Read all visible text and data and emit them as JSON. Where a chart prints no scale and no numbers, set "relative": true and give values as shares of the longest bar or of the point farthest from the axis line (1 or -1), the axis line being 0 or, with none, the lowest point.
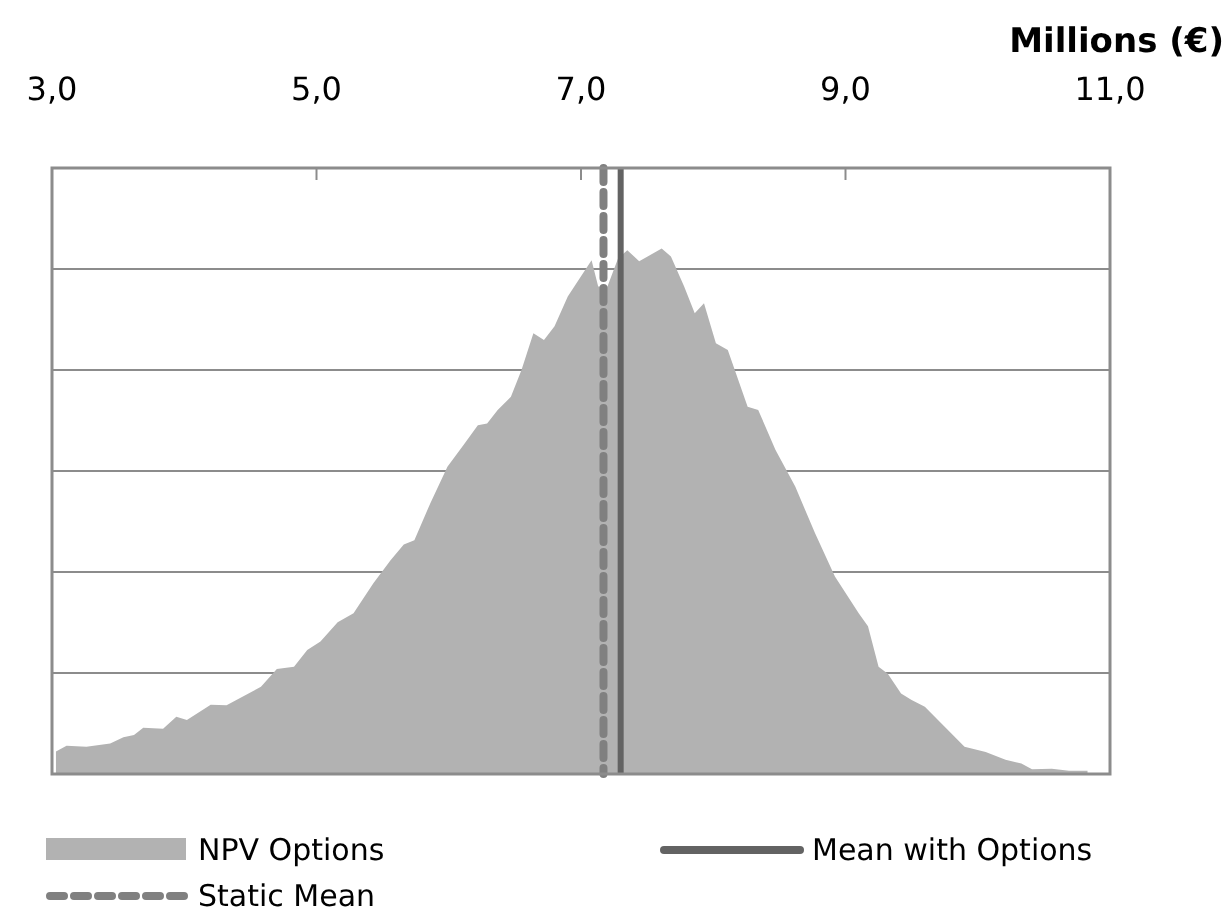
{
  "chart_data": {
    "type": "area",
    "relative": true,
    "xlabel": "Millions (€)",
    "xlim": [
      3,
      11
    ],
    "xticks": [
      {
        "value": 3,
        "label": "3,0"
      },
      {
        "value": 5,
        "label": "5,0"
      },
      {
        "value": 7,
        "label": "7,0"
      },
      {
        "value": 9,
        "label": "9,0"
      },
      {
        "value": 11,
        "label": "11,0"
      }
    ],
    "grid": true,
    "legend": "bottom",
    "series": [
      {
        "name": "NPV Options",
        "color": "#b2b2b2",
        "x": [
          3.03,
          3.11,
          3.26,
          3.44,
          3.54,
          3.62,
          3.69,
          3.84,
          3.94,
          4.02,
          4.2,
          4.32,
          4.58,
          4.7,
          4.83,
          4.93,
          5.03,
          5.16,
          5.28,
          5.43,
          5.56,
          5.66,
          5.74,
          5.86,
          5.99,
          6.12,
          6.22,
          6.29,
          6.37,
          6.47,
          6.55,
          6.64,
          6.72,
          6.8,
          6.9,
          7.03,
          7.08,
          7.13,
          7.2,
          7.28,
          7.35,
          7.44,
          7.61,
          7.68,
          7.78,
          7.86,
          7.93,
          8.02,
          8.11,
          8.26,
          8.34,
          8.47,
          8.62,
          8.77,
          8.92,
          9.1,
          9.17,
          9.25,
          9.32,
          9.42,
          9.5,
          9.6,
          9.75,
          9.9,
          10.06,
          10.21,
          10.33,
          10.41,
          10.56,
          10.69,
          10.83
        ],
        "values": [
          0.043,
          0.054,
          0.052,
          0.058,
          0.07,
          0.074,
          0.088,
          0.086,
          0.109,
          0.103,
          0.132,
          0.131,
          0.166,
          0.2,
          0.204,
          0.236,
          0.252,
          0.289,
          0.306,
          0.363,
          0.407,
          0.437,
          0.445,
          0.515,
          0.585,
          0.629,
          0.664,
          0.667,
          0.693,
          0.718,
          0.769,
          0.839,
          0.826,
          0.852,
          0.909,
          0.959,
          0.978,
          0.928,
          0.928,
          0.981,
          0.997,
          0.976,
          1.0,
          0.985,
          0.928,
          0.877,
          0.896,
          0.82,
          0.807,
          0.699,
          0.693,
          0.617,
          0.547,
          0.458,
          0.376,
          0.306,
          0.281,
          0.204,
          0.191,
          0.153,
          0.141,
          0.128,
          0.09,
          0.052,
          0.042,
          0.027,
          0.02,
          0.009,
          0.01,
          0.006,
          0.006
        ]
      }
    ],
    "ref_lines": [
      {
        "axis": "x",
        "value": 7.3,
        "label": "Mean with Options",
        "color": "#636363",
        "line_style": "solid"
      },
      {
        "axis": "x",
        "value": 7.17,
        "label": "Static Mean",
        "color": "#808080",
        "line_style": "dashed"
      }
    ]
  }
}
